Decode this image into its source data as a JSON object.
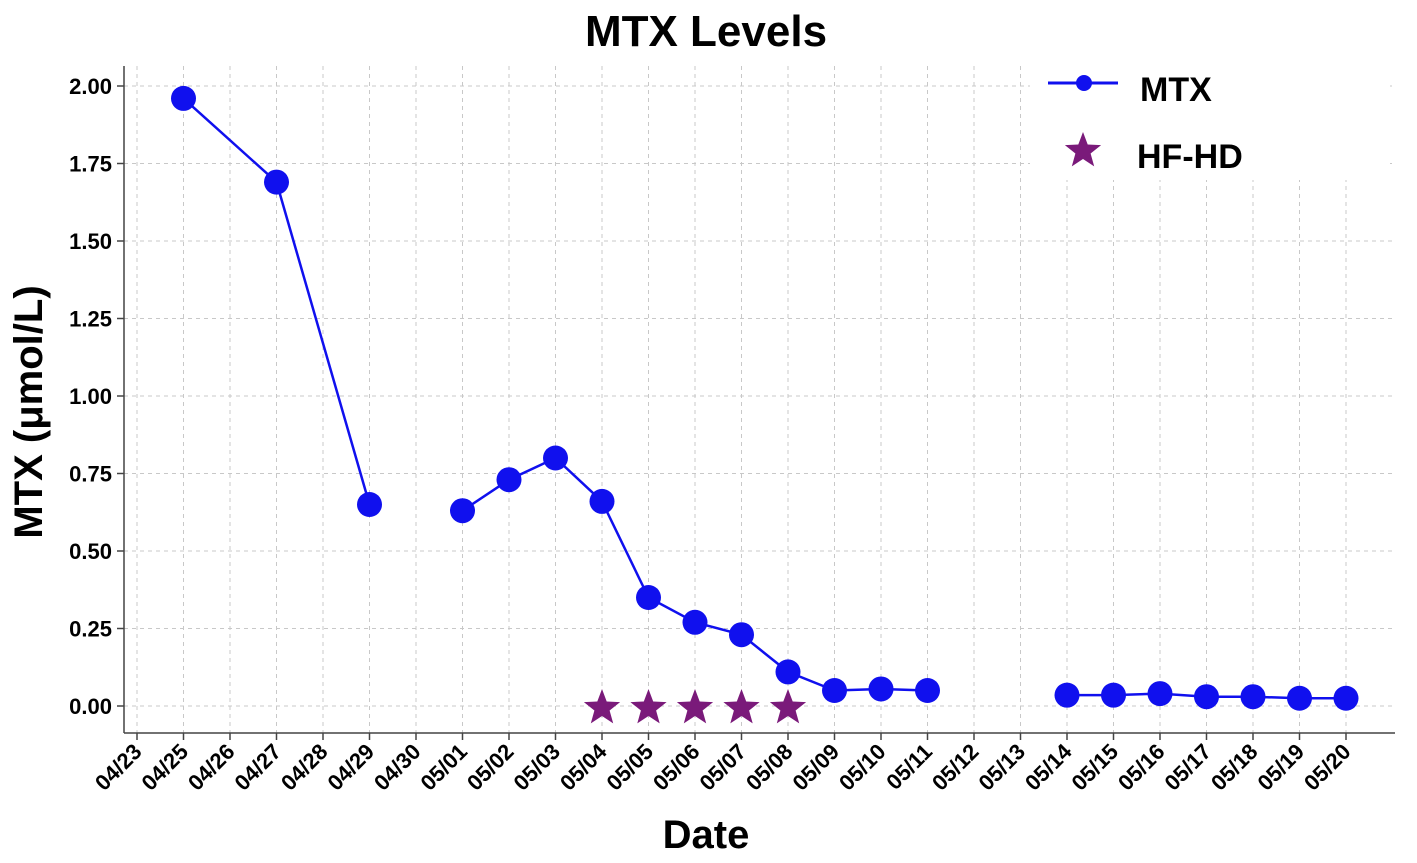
{
  "chart_data": {
    "type": "line",
    "title": "MTX Levels",
    "xlabel": "Date",
    "ylabel": "MTX (μmol/L)",
    "x_tick_labels": [
      "04/23",
      "04/25",
      "04/26",
      "04/27",
      "04/28",
      "04/29",
      "04/30",
      "05/01",
      "05/02",
      "05/03",
      "05/04",
      "05/05",
      "05/06",
      "05/07",
      "05/08",
      "05/09",
      "05/10",
      "05/11",
      "05/12",
      "05/13",
      "05/14",
      "05/15",
      "05/16",
      "05/17",
      "05/18",
      "05/19",
      "05/20"
    ],
    "y_ticks": [
      "0.00",
      "0.25",
      "0.50",
      "0.75",
      "1.00",
      "1.25",
      "1.50",
      "1.75",
      "2.00"
    ],
    "ylim": [
      -0.08,
      2.08
    ],
    "grid": true,
    "legend_position": "top-right",
    "series": [
      {
        "name": "MTX",
        "color": "#1010ee",
        "marker": "circle",
        "points": [
          {
            "x": "04/25",
            "y": 1.96
          },
          {
            "x": "04/27",
            "y": 1.69
          },
          {
            "x": "04/29",
            "y": 0.65
          },
          {
            "x": "05/01",
            "y": 0.63,
            "segment_start": true
          },
          {
            "x": "05/02",
            "y": 0.73
          },
          {
            "x": "05/03",
            "y": 0.8
          },
          {
            "x": "05/04",
            "y": 0.66
          },
          {
            "x": "05/05",
            "y": 0.35
          },
          {
            "x": "05/06",
            "y": 0.27
          },
          {
            "x": "05/07",
            "y": 0.23
          },
          {
            "x": "05/08",
            "y": 0.11
          },
          {
            "x": "05/09",
            "y": 0.05
          },
          {
            "x": "05/10",
            "y": 0.055
          },
          {
            "x": "05/11",
            "y": 0.05
          },
          {
            "x": "05/14",
            "y": 0.035,
            "segment_start": true
          },
          {
            "x": "05/15",
            "y": 0.035
          },
          {
            "x": "05/16",
            "y": 0.04
          },
          {
            "x": "05/17",
            "y": 0.03
          },
          {
            "x": "05/18",
            "y": 0.03
          },
          {
            "x": "05/19",
            "y": 0.025
          },
          {
            "x": "05/20",
            "y": 0.025
          }
        ]
      },
      {
        "name": "HF-HD",
        "color": "#7a1a7a",
        "marker": "star",
        "points": [
          {
            "x": "05/04",
            "y": 0
          },
          {
            "x": "05/05",
            "y": 0
          },
          {
            "x": "05/06",
            "y": 0
          },
          {
            "x": "05/07",
            "y": 0
          },
          {
            "x": "05/08",
            "y": 0
          }
        ]
      }
    ]
  }
}
